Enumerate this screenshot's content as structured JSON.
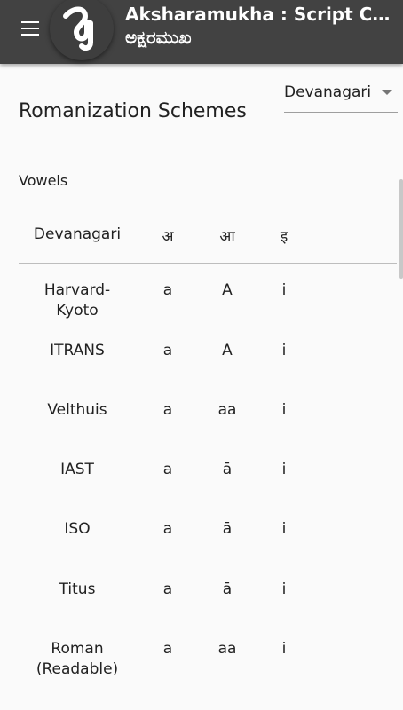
{
  "appbar": {
    "title": "Aksharamukha : Script Con...",
    "subtitle": "ಅಕ್ಷರಮುಖ",
    "menu_icon": "menu-icon",
    "logo_icon": "aksharamukha-logo"
  },
  "select": {
    "value": "Devanagari"
  },
  "page_title": "Romanization Schemes",
  "section_label": "Vowels",
  "table": {
    "header": [
      "Devanagari",
      "अ",
      "आ",
      "इ"
    ],
    "rows": [
      [
        "Harvard-\nKyoto",
        "a",
        "A",
        "i"
      ],
      [
        "ITRANS",
        "a",
        "A",
        "i"
      ],
      [
        "Velthuis",
        "a",
        "aa",
        "i"
      ],
      [
        "IAST",
        "a",
        "ā",
        "i"
      ],
      [
        "ISO",
        "a",
        "ā",
        "i"
      ],
      [
        "Titus",
        "a",
        "ā",
        "i"
      ],
      [
        "Roman\n(Readable)",
        "a",
        "aa",
        "i"
      ]
    ]
  }
}
